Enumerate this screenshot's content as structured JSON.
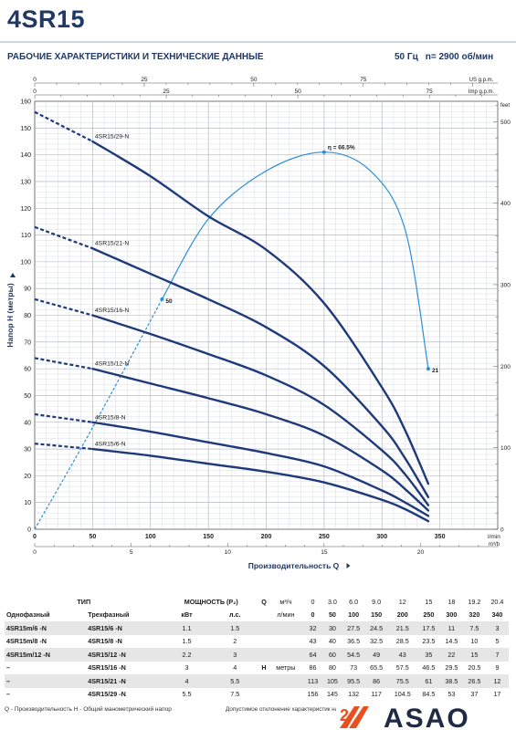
{
  "header": {
    "title": "4SR15",
    "subtitle": "РАБОЧИЕ ХАРАКТЕРИСТИКИ И ТЕХНИЧЕСКИЕ ДАННЫЕ",
    "frequency": "50 Гц",
    "speed": "n= 2900 об/мин"
  },
  "chart_data": {
    "type": "line",
    "ylabel": "Напор H (метры)",
    "xlabel": "Производительность Q",
    "x_unit": "l/min",
    "x2_unit": "m³/h",
    "top_axis1_unit": "US g.p.m.",
    "top_axis2_unit": "Imp g.p.m.",
    "right_axis_unit": "feet",
    "xlim": [
      0,
      400
    ],
    "ylim": [
      0,
      160
    ],
    "x_ticks": [
      0,
      50,
      100,
      150,
      200,
      250,
      300,
      350
    ],
    "y_ticks": [
      0,
      10,
      20,
      30,
      40,
      50,
      60,
      70,
      80,
      90,
      100,
      110,
      120,
      130,
      140,
      150,
      160
    ],
    "m3h_ticks": [
      0,
      5,
      10,
      15,
      20
    ],
    "usgpm_ticks": [
      0,
      25,
      50,
      75
    ],
    "impgpm_ticks": [
      0,
      25,
      50,
      75
    ],
    "feet_ticks": [
      0,
      100,
      200,
      300,
      400,
      500
    ],
    "grid": true,
    "series": [
      {
        "name": "4SR15/29-N",
        "x": [
          50,
          100,
          150,
          200,
          250,
          300,
          320,
          340
        ],
        "y": [
          145,
          132,
          117,
          104.5,
          84.5,
          53,
          37,
          17
        ],
        "dash_to": 156
      },
      {
        "name": "4SR15/21-N",
        "x": [
          50,
          100,
          150,
          200,
          250,
          300,
          320,
          340
        ],
        "y": [
          105,
          95.5,
          86,
          75.5,
          61,
          38.5,
          26.5,
          12
        ],
        "dash_to": 113
      },
      {
        "name": "4SR15/16-N",
        "x": [
          50,
          100,
          150,
          200,
          250,
          300,
          320,
          340
        ],
        "y": [
          80,
          73,
          65.5,
          57.5,
          46.5,
          29.5,
          20.5,
          9
        ],
        "dash_to": 86
      },
      {
        "name": "4SR15/12-N",
        "x": [
          50,
          100,
          150,
          200,
          250,
          300,
          320,
          340
        ],
        "y": [
          60,
          54.5,
          49,
          43,
          35,
          22,
          15,
          7
        ],
        "dash_to": 64
      },
      {
        "name": "4SR15/8-N",
        "x": [
          50,
          100,
          150,
          200,
          250,
          300,
          320,
          340
        ],
        "y": [
          40,
          36.5,
          32.5,
          28.5,
          23.5,
          14.5,
          10,
          5
        ],
        "dash_to": 43
      },
      {
        "name": "4SR15/6-N",
        "x": [
          50,
          100,
          150,
          200,
          250,
          300,
          320,
          340
        ],
        "y": [
          30,
          27.5,
          24.5,
          21.5,
          17.5,
          11,
          7.5,
          3
        ],
        "dash_to": 32
      }
    ],
    "efficiency": {
      "label": "η = 66.5%",
      "points": [
        [
          0,
          0
        ],
        [
          50,
          38
        ],
        [
          110,
          86
        ],
        [
          150,
          116
        ],
        [
          200,
          134
        ],
        [
          250,
          141
        ],
        [
          290,
          134
        ],
        [
          320,
          112
        ],
        [
          340,
          60
        ]
      ],
      "labels": [
        {
          "x": 110,
          "y": 86,
          "text": "50"
        },
        {
          "x": 250,
          "y": 141,
          "text": "η = 66.5%"
        },
        {
          "x": 340,
          "y": 60,
          "text": "21"
        }
      ]
    }
  },
  "table": {
    "type_header": "ТИП",
    "single_phase": "Однофазный",
    "three_phase": "Трехфазный",
    "power_header": "МОЩНОСТЬ (P₂)",
    "kw": "кВт",
    "hp": "л.с.",
    "q_label": "Q",
    "q_unit1": "м³/ч",
    "q_unit2": "л/мин",
    "h_label": "H",
    "h_unit": "метры",
    "q_m3h": [
      "0",
      "3.0",
      "6.0",
      "9.0",
      "12",
      "15",
      "18",
      "19.2",
      "20.4"
    ],
    "q_lmin": [
      "0",
      "50",
      "100",
      "150",
      "200",
      "250",
      "300",
      "320",
      "340"
    ],
    "rows": [
      {
        "single": "4SR15m/6  -N",
        "three": "4SR15/6   -N",
        "kw": "1.1",
        "hp": "1.5",
        "h": [
          "32",
          "30",
          "27.5",
          "24.5",
          "21.5",
          "17.5",
          "11",
          "7.5",
          "3"
        ]
      },
      {
        "single": "4SR15m/8  -N",
        "three": "4SR15/8   -N",
        "kw": "1.5",
        "hp": "2",
        "h": [
          "43",
          "40",
          "36.5",
          "32.5",
          "28.5",
          "23.5",
          "14.5",
          "10",
          "5"
        ]
      },
      {
        "single": "4SR15m/12 -N",
        "three": "4SR15/12 -N",
        "kw": "2.2",
        "hp": "3",
        "h": [
          "64",
          "60",
          "54.5",
          "49",
          "43",
          "35",
          "22",
          "15",
          "7"
        ]
      },
      {
        "single": "–",
        "three": "4SR15/16 -N",
        "kw": "3",
        "hp": "4",
        "h": [
          "86",
          "80",
          "73",
          "65.5",
          "57.5",
          "46.5",
          "29.5",
          "20.5",
          "9"
        ]
      },
      {
        "single": "–",
        "three": "4SR15/21 -N",
        "kw": "4",
        "hp": "5.5",
        "h": [
          "113",
          "105",
          "95.5",
          "86",
          "75.5",
          "61",
          "38.5",
          "26.5",
          "12"
        ]
      },
      {
        "single": "–",
        "three": "4SR15/29 -N",
        "kw": "5.5",
        "hp": "7.5",
        "h": [
          "156",
          "145",
          "132",
          "117",
          "104.5",
          "84.5",
          "53",
          "37",
          "17"
        ]
      }
    ]
  },
  "footer": {
    "note": "Q - Производительность  H - Общий манометрический напор",
    "disclaimer": "Допустимое отклонение характеристик насоса в соответствии с ISO 9906",
    "logo_text": "ASAO",
    "logo_digit": "2"
  },
  "colors": {
    "curve": "#1f3a7a",
    "efficiency": "#2d8fd4",
    "grid": "#c9cdd6",
    "title": "#1f3864",
    "logo_orange": "#e8501f"
  }
}
